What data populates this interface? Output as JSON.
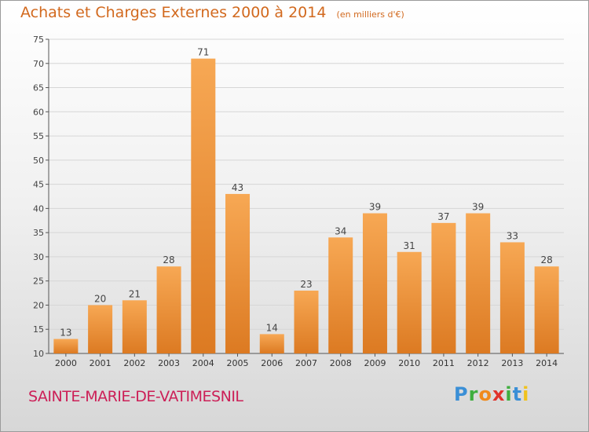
{
  "header": {
    "title": "Achats et Charges Externes 2000 à 2014",
    "unit": "(en milliers d'€)"
  },
  "footer": {
    "commune": "SAINTE-MARIE-DE-VATIMESNIL",
    "logo": "Proxiti"
  },
  "colors": {
    "bar_light": "#f7a854",
    "bar_dark": "#dc7a22",
    "title": "#d2691e",
    "commune": "#cc1f57"
  },
  "chart_data": {
    "type": "bar",
    "title": "Achats et Charges Externes 2000 à 2014",
    "subtitle": "(en milliers d'€)",
    "categories": [
      "2000",
      "2001",
      "2002",
      "2003",
      "2004",
      "2005",
      "2006",
      "2007",
      "2008",
      "2009",
      "2010",
      "2011",
      "2012",
      "2013",
      "2014"
    ],
    "values": [
      13,
      20,
      21,
      28,
      71,
      43,
      14,
      23,
      34,
      39,
      31,
      37,
      39,
      33,
      28
    ],
    "ylim": [
      10,
      75
    ],
    "yticks": [
      10,
      15,
      20,
      25,
      30,
      35,
      40,
      45,
      50,
      55,
      60,
      65,
      70,
      75
    ],
    "grid": true,
    "legend": "none"
  }
}
